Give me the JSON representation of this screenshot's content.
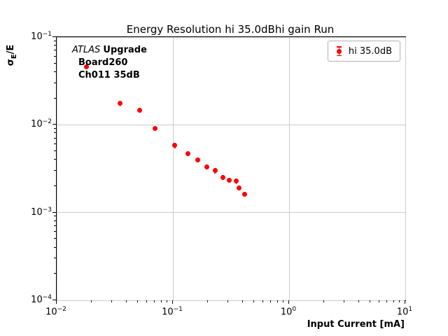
{
  "title": "Energy Resolution hi 35.0dBhi gain Run",
  "xlabel": "Input Current [mA]",
  "ylabel": {
    "sigma": "σ",
    "sub": "E",
    "rest": "/E"
  },
  "annotation": {
    "atlas": "ATLAS",
    "upgrade": "Upgrade",
    "line2": "Board260",
    "line3": "Ch011 35dB"
  },
  "legend": {
    "label": "hi 35.0dB"
  },
  "colors": {
    "marker": "#ff0000",
    "grid": "#cccccc",
    "spine": "#000000",
    "legend_edge": "#b0b0b0"
  },
  "chart_data": {
    "type": "scatter",
    "title": "Energy Resolution hi 35.0dBhi gain Run",
    "xlabel": "Input Current [mA]",
    "ylabel": "sigma_E/E",
    "x_scale": "log",
    "y_scale": "log",
    "xlim": [
      0.01,
      10
    ],
    "ylim": [
      0.0001,
      0.1
    ],
    "grid": true,
    "legend_position": "upper right",
    "series": [
      {
        "name": "hi 35.0dB",
        "color": "#ff0000",
        "marker": "circle",
        "points": [
          {
            "x": 0.018,
            "y": 0.046,
            "yerr": 0.003
          },
          {
            "x": 0.035,
            "y": 0.0175,
            "yerr": 0.0012
          },
          {
            "x": 0.052,
            "y": 0.0147,
            "yerr": 0.001
          },
          {
            "x": 0.07,
            "y": 0.0091,
            "yerr": 0.0006
          },
          {
            "x": 0.104,
            "y": 0.0058,
            "yerr": 0.0004
          },
          {
            "x": 0.135,
            "y": 0.0047,
            "yerr": 0.0003
          },
          {
            "x": 0.163,
            "y": 0.004,
            "yerr": 0.00025
          },
          {
            "x": 0.195,
            "y": 0.0033,
            "yerr": 0.0002
          },
          {
            "x": 0.23,
            "y": 0.003,
            "yerr": 0.0002
          },
          {
            "x": 0.268,
            "y": 0.0025,
            "yerr": 0.00016
          },
          {
            "x": 0.305,
            "y": 0.00232,
            "yerr": 0.00015
          },
          {
            "x": 0.35,
            "y": 0.00228,
            "yerr": 0.00015
          },
          {
            "x": 0.373,
            "y": 0.00192,
            "yerr": 0.00013
          },
          {
            "x": 0.415,
            "y": 0.00163,
            "yerr": 0.0001
          }
        ]
      }
    ]
  }
}
